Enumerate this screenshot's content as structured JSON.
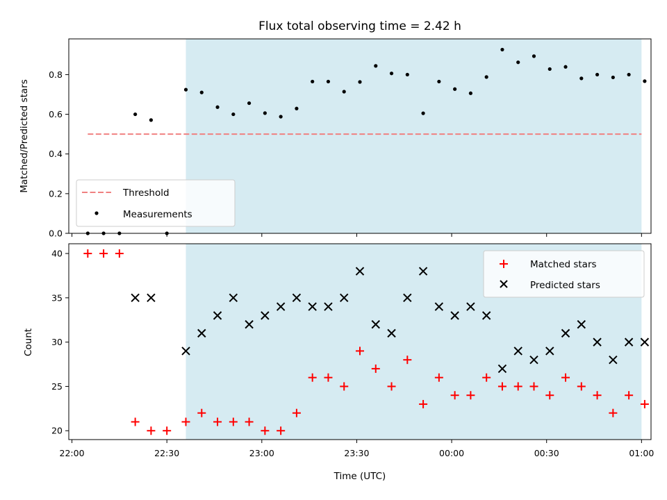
{
  "chart_data": [
    {
      "type": "scatter",
      "title": "Flux total observing time = 2.42 h",
      "xlabel": "",
      "ylabel": "Matched/Predicted stars",
      "xlim": [
        "21:59",
        "01:03"
      ],
      "ylim": [
        0,
        0.98
      ],
      "yticks": [
        "0.0",
        "0.2",
        "0.4",
        "0.6",
        "0.8"
      ],
      "shaded_region": [
        "22:36",
        "01:00"
      ],
      "shaded_color": "#add8e6",
      "threshold": {
        "name": "Threshold",
        "value": 0.5,
        "x_range": [
          "22:05",
          "01:00"
        ],
        "color": "#f08080"
      },
      "legend_position": "lower left",
      "series": [
        {
          "name": "Measurements",
          "color": "#000000",
          "marker": "dot",
          "x": [
            "22:05",
            "22:10",
            "22:15",
            "22:20",
            "22:25",
            "22:30",
            "22:36",
            "22:41",
            "22:46",
            "22:51",
            "22:56",
            "23:01",
            "23:06",
            "23:11",
            "23:16",
            "23:21",
            "23:26",
            "23:31",
            "23:36",
            "23:41",
            "23:46",
            "23:51",
            "23:56",
            "00:01",
            "00:06",
            "00:11",
            "00:16",
            "00:21",
            "00:26",
            "00:31",
            "00:36",
            "00:41",
            "00:46",
            "00:51",
            "00:56",
            "01:01"
          ],
          "y": [
            0.0,
            0.0,
            0.0,
            0.6,
            0.571,
            0.0,
            0.724,
            0.71,
            0.636,
            0.6,
            0.656,
            0.606,
            0.588,
            0.629,
            0.765,
            0.765,
            0.714,
            0.763,
            0.844,
            0.806,
            0.8,
            0.605,
            0.765,
            0.727,
            0.706,
            0.788,
            0.926,
            0.862,
            0.893,
            0.828,
            0.839,
            0.781,
            0.8,
            0.786,
            0.8,
            0.767
          ]
        }
      ]
    },
    {
      "type": "scatter",
      "xlabel": "Time (UTC)",
      "ylabel": "Count",
      "xlim": [
        "21:59",
        "01:03"
      ],
      "ylim": [
        19,
        41.1
      ],
      "xticks": [
        "22:00",
        "22:30",
        "23:00",
        "23:30",
        "00:00",
        "00:30",
        "01:00"
      ],
      "yticks": [
        "20",
        "25",
        "30",
        "35",
        "40"
      ],
      "shaded_region": [
        "22:36",
        "01:00"
      ],
      "shaded_color": "#add8e6",
      "legend_position": "upper right",
      "series": [
        {
          "name": "Matched stars",
          "color": "#ff0000",
          "marker": "plus",
          "x": [
            "22:05",
            "22:10",
            "22:15",
            "22:20",
            "22:25",
            "22:30",
            "22:36",
            "22:41",
            "22:46",
            "22:51",
            "22:56",
            "23:01",
            "23:06",
            "23:11",
            "23:16",
            "23:21",
            "23:26",
            "23:31",
            "23:36",
            "23:41",
            "23:46",
            "23:51",
            "23:56",
            "00:01",
            "00:06",
            "00:11",
            "00:16",
            "00:21",
            "00:26",
            "00:31",
            "00:36",
            "00:41",
            "00:46",
            "00:51",
            "00:56",
            "01:01"
          ],
          "y": [
            40,
            40,
            40,
            21,
            20,
            20,
            21,
            22,
            21,
            21,
            21,
            20,
            20,
            22,
            26,
            26,
            25,
            29,
            27,
            25,
            28,
            23,
            26,
            24,
            24,
            26,
            25,
            25,
            25,
            24,
            26,
            25,
            24,
            22,
            24,
            23
          ]
        },
        {
          "name": "Predicted stars",
          "color": "#000000",
          "marker": "x",
          "x": [
            "22:20",
            "22:25",
            "22:36",
            "22:41",
            "22:46",
            "22:51",
            "22:56",
            "23:01",
            "23:06",
            "23:11",
            "23:16",
            "23:21",
            "23:26",
            "23:31",
            "23:36",
            "23:41",
            "23:46",
            "23:51",
            "23:56",
            "00:01",
            "00:06",
            "00:11",
            "00:16",
            "00:21",
            "00:26",
            "00:31",
            "00:36",
            "00:41",
            "00:46",
            "00:51",
            "00:56",
            "01:01"
          ],
          "y": [
            35,
            35,
            29,
            31,
            33,
            35,
            32,
            33,
            34,
            35,
            34,
            34,
            35,
            38,
            32,
            31,
            35,
            38,
            34,
            33,
            34,
            33,
            27,
            29,
            28,
            29,
            31,
            32,
            30,
            28,
            30,
            30
          ]
        }
      ]
    }
  ]
}
